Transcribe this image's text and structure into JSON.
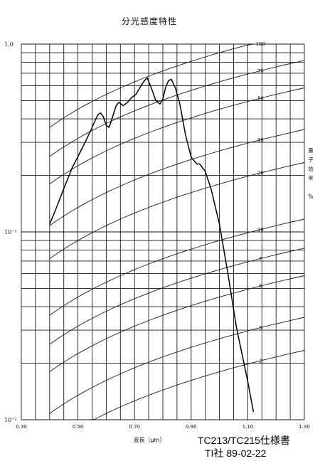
{
  "chart_data": {
    "type": "line",
    "title": "分光感度特性",
    "xlabel": "波長（μm）",
    "ylabel_right": [
      "量",
      "子",
      "効",
      "率",
      "",
      "%"
    ],
    "x_ticks": [
      "0.30",
      "0.50",
      "0.70",
      "0.90",
      "1.10",
      "1.30"
    ],
    "xlim": [
      0.3,
      1.3
    ],
    "y_scale": "log",
    "ylim": [
      0.01,
      1.0
    ],
    "y_ticks": [
      "1.0",
      "10⁻¹",
      "10⁻²"
    ],
    "grid": true,
    "series": [
      {
        "x": [
          0.4,
          0.42,
          0.45,
          0.48,
          0.51,
          0.53,
          0.55,
          0.57,
          0.58,
          0.59,
          0.6,
          0.61,
          0.62,
          0.635,
          0.645,
          0.66,
          0.675,
          0.69,
          0.705,
          0.72,
          0.735,
          0.745,
          0.76,
          0.775,
          0.79,
          0.8,
          0.81,
          0.82,
          0.83,
          0.845,
          0.86,
          0.88,
          0.9,
          0.92,
          0.93,
          0.94,
          0.95,
          0.97,
          1.0,
          1.03,
          1.06,
          1.1,
          1.12
        ],
        "y": [
          0.11,
          0.13,
          0.17,
          0.22,
          0.27,
          0.31,
          0.36,
          0.42,
          0.43,
          0.41,
          0.37,
          0.36,
          0.4,
          0.47,
          0.49,
          0.47,
          0.49,
          0.52,
          0.54,
          0.59,
          0.64,
          0.66,
          0.58,
          0.5,
          0.48,
          0.51,
          0.59,
          0.64,
          0.65,
          0.58,
          0.48,
          0.33,
          0.25,
          0.23,
          0.23,
          0.22,
          0.21,
          0.17,
          0.11,
          0.06,
          0.031,
          0.016,
          0.011
        ]
      }
    ],
    "quantum_efficiency_labels": [
      "100",
      "70",
      "50",
      "30",
      "20",
      "10",
      "7",
      "5",
      "3",
      "2"
    ],
    "quantum_efficiency_values": [
      100,
      70,
      50,
      30,
      20,
      10,
      7,
      5,
      3,
      2
    ]
  },
  "annotation": {
    "spec": "TC213/TC215仕様書",
    "source": "TI社  89-02-22"
  }
}
